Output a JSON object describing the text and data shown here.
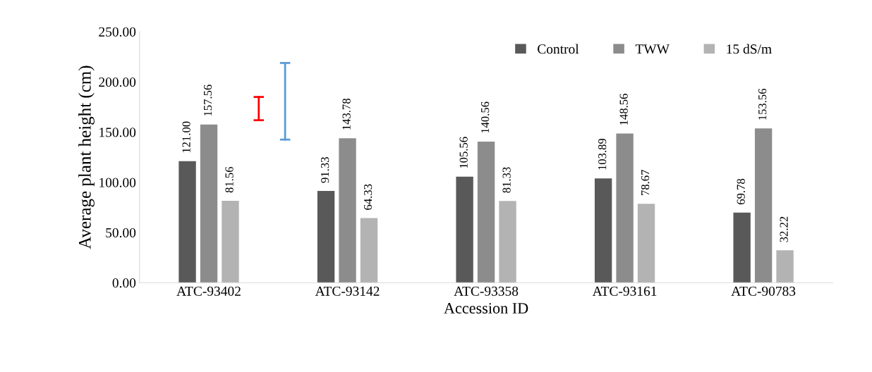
{
  "chart_data": {
    "type": "bar",
    "xlabel": "Accession ID",
    "ylabel": "Average plant height (cm)",
    "categories": [
      "ATC-93402",
      "ATC-93142",
      "ATC-93358",
      "ATC-93161",
      "ATC-90783"
    ],
    "series": [
      {
        "name": "Control",
        "color": "#595959",
        "values": [
          121.0,
          91.33,
          105.56,
          103.89,
          69.78
        ],
        "value_labels": [
          "121.00",
          "91.33",
          "105.56",
          "103.89",
          "69.78"
        ]
      },
      {
        "name": "TWW",
        "color": "#8c8c8c",
        "values": [
          157.56,
          143.78,
          140.56,
          148.56,
          153.56
        ],
        "value_labels": [
          "157.56",
          "143.78",
          "140.56",
          "148.56",
          "153.56"
        ]
      },
      {
        "name": "15 dS/m",
        "color": "#b3b3b3",
        "values": [
          81.56,
          64.33,
          81.33,
          78.67,
          32.22
        ],
        "value_labels": [
          "81.56",
          "64.33",
          "81.33",
          "78.67",
          "32.22"
        ]
      }
    ],
    "ylim": [
      0,
      250
    ],
    "yticks": [
      {
        "value": 0,
        "label": "0.00"
      },
      {
        "value": 50,
        "label": "50.00"
      },
      {
        "value": 100,
        "label": "100.00"
      },
      {
        "value": 150,
        "label": "150.00"
      },
      {
        "value": 200,
        "label": "200.00"
      },
      {
        "value": 250,
        "label": "250.00"
      }
    ],
    "legend": "top right",
    "grid": false
  }
}
